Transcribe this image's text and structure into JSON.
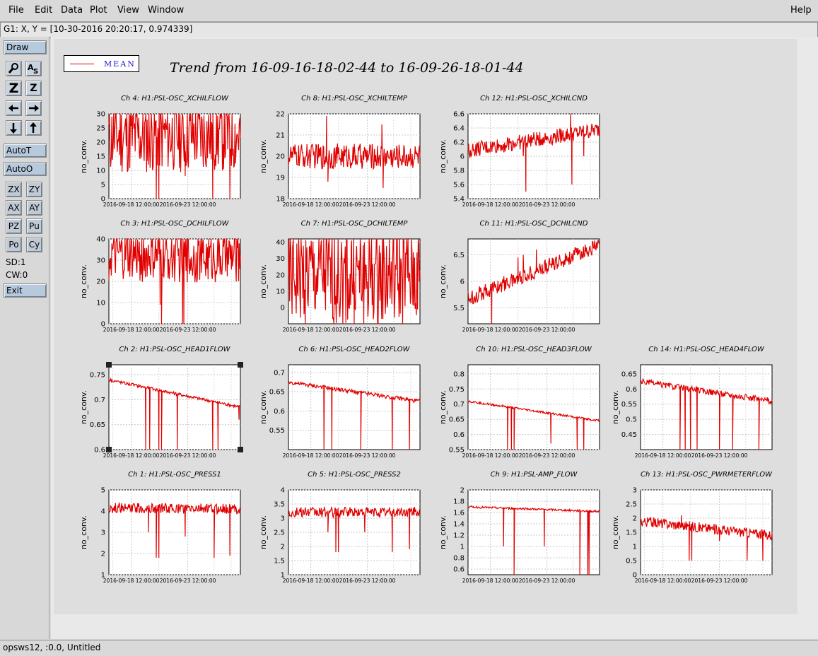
{
  "menu": {
    "items": [
      {
        "name": "menu-file",
        "label": "File"
      },
      {
        "name": "menu-edit",
        "label": "Edit"
      },
      {
        "name": "menu-data",
        "label": "Data"
      },
      {
        "name": "menu-plot",
        "label": "Plot"
      },
      {
        "name": "menu-view",
        "label": "View"
      },
      {
        "name": "menu-window",
        "label": "Window"
      }
    ],
    "help": "Help"
  },
  "coord_readout": "G1: X, Y = [10-30-2016 20:20:17, 0.974339]",
  "toolbar": {
    "draw": "Draw",
    "autot": "AutoT",
    "autoo": "AutoO",
    "zx": "ZX",
    "zy": "ZY",
    "ax": "AX",
    "ay": "AY",
    "pz": "PZ",
    "pu": "Pu",
    "po": "Po",
    "cy": "Cy",
    "sd": "SD:1",
    "cw": "CW:0",
    "exit": "Exit",
    "icons": [
      "magnifier-icon",
      "text-size-icon",
      "zoom-in-icon",
      "zoom-out-icon",
      "arrow-left-icon",
      "arrow-right-icon",
      "arrow-down-icon",
      "arrow-up-icon"
    ]
  },
  "legend": {
    "label": "MEAN",
    "color": "#e00000"
  },
  "trend_title": "Trend from 16-09-16-18-02-44 to 16-09-26-18-01-44",
  "status": "opsws12, :0.0, Untitled",
  "chart_data": [
    {
      "type": "line",
      "title": "Ch 4: H1:PSL-OSC_XCHILFLOW",
      "ylabel": "no_conv.",
      "yticks": [
        "0",
        "5",
        "10",
        "15",
        "20",
        "25",
        "30"
      ],
      "ylim": [
        0,
        30
      ],
      "xticks": [
        "2016-09-18 12:00:00",
        "2016-09-23 12:00:00"
      ],
      "grid": true,
      "series": [
        {
          "name": "MEAN",
          "baseline": 22,
          "dips": [
            [
              0.3,
              12
            ],
            [
              0.36,
              0
            ],
            [
              0.38,
              0
            ],
            [
              0.58,
              8
            ],
            [
              0.79,
              0
            ],
            [
              0.92,
              0
            ]
          ],
          "steps": [
            [
              0.3,
              22.6
            ]
          ],
          "noise": 0.15
        }
      ]
    },
    {
      "type": "line",
      "title": "Ch 8: H1:PSL-OSC_XCHILTEMP",
      "ylabel": "no_conv.",
      "yticks": [
        "18",
        "19",
        "20",
        "21",
        "22"
      ],
      "ylim": [
        18,
        22
      ],
      "xticks": [
        "2016-09-18 12:00:00",
        "2016-09-23 12:00:00"
      ],
      "grid": true,
      "series": [
        {
          "name": "MEAN",
          "baseline": 20,
          "dips": [
            [
              0.27,
              19.5
            ],
            [
              0.29,
              21.9
            ],
            [
              0.3,
              18.8
            ],
            [
              0.47,
              19.6
            ],
            [
              0.71,
              21.5
            ],
            [
              0.72,
              18.5
            ],
            [
              0.81,
              19.8
            ]
          ],
          "steps": [],
          "noise": 0.05
        }
      ]
    },
    {
      "type": "line",
      "title": "Ch 12: H1:PSL-OSC_XCHILCND",
      "ylabel": "no_conv.",
      "yticks": [
        "5.4",
        "5.6",
        "5.8",
        "6",
        "6.2",
        "6.4",
        "6.6"
      ],
      "ylim": [
        5.4,
        6.6
      ],
      "xticks": [
        "2016-09-18 12:00:00",
        "2016-09-23 12:00:00"
      ],
      "grid": true,
      "series": [
        {
          "name": "MEAN",
          "baseline": 6.08,
          "trend_end": 6.38,
          "dips": [
            [
              0.42,
              6.0
            ],
            [
              0.44,
              5.5
            ],
            [
              0.48,
              6.3
            ],
            [
              0.79,
              5.6
            ],
            [
              0.78,
              6.6
            ],
            [
              0.88,
              6.0
            ]
          ],
          "steps": [],
          "noise": 0.03
        }
      ]
    },
    {
      "type": "line",
      "title": "Ch 3: H1:PSL-OSC_DCHILFLOW",
      "ylabel": "no_conv.",
      "yticks": [
        "0",
        "10",
        "20",
        "30",
        "40"
      ],
      "ylim": [
        0,
        40
      ],
      "xticks": [
        "2016-09-18 12:00:00",
        "2016-09-23 12:00:00"
      ],
      "grid": true,
      "series": [
        {
          "name": "MEAN",
          "baseline": 31.5,
          "dips": [
            [
              0.39,
              9
            ],
            [
              0.4,
              0
            ],
            [
              0.56,
              0
            ],
            [
              0.57,
              0
            ]
          ],
          "steps": [],
          "noise": 0.1
        }
      ]
    },
    {
      "type": "line",
      "title": "Ch 7: H1:PSL-OSC_DCHILTEMP",
      "ylabel": "no_conv.",
      "yticks": [
        "0",
        "10",
        "20",
        "30",
        "40"
      ],
      "ylim": [
        -10,
        42
      ],
      "xticks": [
        "2016-09-18 12:00:00",
        "2016-09-23 12:00:00"
      ],
      "grid": true,
      "series": [
        {
          "name": "MEAN",
          "baseline": 19.5,
          "dips": [
            [
              0.3,
              13
            ],
            [
              0.48,
              41
            ],
            [
              0.5,
              16
            ]
          ],
          "steps": [
            [
              0.3,
              18.2
            ],
            [
              0.5,
              19.3
            ]
          ],
          "noise": 0.2
        }
      ]
    },
    {
      "type": "line",
      "title": "Ch 11: H1:PSL-OSC_DCHILCND",
      "ylabel": "no_conv.",
      "yticks": [
        "5.5",
        "6",
        "6.5"
      ],
      "ylim": [
        5.2,
        6.8
      ],
      "xticks": [
        "2016-09-18 12:00:00",
        "2016-09-23 12:00:00"
      ],
      "grid": true,
      "series": [
        {
          "name": "MEAN",
          "baseline": 5.68,
          "trend_end": 6.68,
          "dips": [
            [
              0.18,
              5.2
            ],
            [
              0.38,
              6.45
            ],
            [
              0.42,
              6.5
            ],
            [
              0.52,
              6.6
            ]
          ],
          "steps": [],
          "noise": 0.03
        }
      ]
    },
    {
      "type": "line",
      "title": "Ch 2: H1:PSL-OSC_HEAD1FLOW",
      "ylabel": "no_conv.",
      "yticks": [
        "0.6",
        "0.65",
        "0.7",
        "0.75"
      ],
      "ylim": [
        0.6,
        0.77
      ],
      "xticks": [
        "2016-09-18 12:00:00",
        "2016-09-23 12:00:00"
      ],
      "grid": true,
      "series": [
        {
          "name": "MEAN",
          "baseline": 0.74,
          "trend_end": 0.685,
          "dips": [
            [
              0.28,
              0.6
            ],
            [
              0.31,
              0.6
            ],
            [
              0.38,
              0.6
            ],
            [
              0.4,
              0.6
            ],
            [
              0.52,
              0.6
            ],
            [
              0.79,
              0.6
            ],
            [
              0.83,
              0.6
            ],
            [
              0.99,
              0.66
            ]
          ],
          "steps": [
            [
              0.3,
              0.7
            ]
          ],
          "noise": 0.006
        }
      ]
    },
    {
      "type": "line",
      "title": "Ch 6: H1:PSL-OSC_HEAD2FLOW",
      "ylabel": "no_conv.",
      "yticks": [
        "0.55",
        "0.6",
        "0.65",
        "0.7"
      ],
      "ylim": [
        0.5,
        0.72
      ],
      "xticks": [
        "2016-09-18 12:00:00",
        "2016-09-23 12:00:00"
      ],
      "grid": true,
      "series": [
        {
          "name": "MEAN",
          "baseline": 0.675,
          "trend_end": 0.625,
          "dips": [
            [
              0.27,
              0.5
            ],
            [
              0.33,
              0.5
            ],
            [
              0.55,
              0.5
            ],
            [
              0.79,
              0.5
            ],
            [
              0.92,
              0.5
            ]
          ],
          "steps": [
            [
              0.3,
              0.64
            ]
          ],
          "noise": 0.008
        }
      ]
    },
    {
      "type": "line",
      "title": "Ch 10: H1:PSL-OSC_HEAD3FLOW",
      "ylabel": "no_conv.",
      "yticks": [
        "0.55",
        "0.6",
        "0.65",
        "0.7",
        "0.75",
        "0.8"
      ],
      "ylim": [
        0.55,
        0.83
      ],
      "xticks": [
        "2016-09-18 12:00:00",
        "2016-09-23 12:00:00"
      ],
      "grid": true,
      "series": [
        {
          "name": "MEAN",
          "baseline": 0.71,
          "trend_end": 0.645,
          "dips": [
            [
              0.3,
              0.55
            ],
            [
              0.33,
              0.55
            ],
            [
              0.35,
              0.55
            ],
            [
              0.63,
              0.57
            ],
            [
              0.83,
              0.55
            ],
            [
              0.88,
              0.55
            ]
          ],
          "steps": [
            [
              0.3,
              0.665
            ]
          ],
          "noise": 0.004
        }
      ]
    },
    {
      "type": "line",
      "title": "Ch 14: H1:PSL-OSC_HEAD4FLOW",
      "ylabel": "no_conv.",
      "yticks": [
        "0.45",
        "0.5",
        "0.55",
        "0.6",
        "0.65"
      ],
      "ylim": [
        0.4,
        0.68
      ],
      "xticks": [
        "2016-09-18 12:00:00",
        "2016-09-23 12:00:00"
      ],
      "grid": true,
      "series": [
        {
          "name": "MEAN",
          "baseline": 0.625,
          "trend_end": 0.56,
          "dips": [
            [
              0.3,
              0.4
            ],
            [
              0.34,
              0.4
            ],
            [
              0.38,
              0.4
            ],
            [
              0.43,
              0.4
            ],
            [
              0.6,
              0.4
            ],
            [
              0.7,
              0.4
            ],
            [
              0.9,
              0.4
            ]
          ],
          "steps": [
            [
              0.3,
              0.57
            ]
          ],
          "noise": 0.012
        }
      ]
    },
    {
      "type": "line",
      "title": "Ch 1: H1:PSL-OSC_PRESS1",
      "ylabel": "no_conv.",
      "yticks": [
        "1",
        "2",
        "3",
        "4",
        "5"
      ],
      "ylim": [
        1,
        5
      ],
      "xticks": [
        "2016-09-18 12:00:00",
        "2016-09-23 12:00:00"
      ],
      "grid": true,
      "series": [
        {
          "name": "MEAN",
          "baseline": 4.15,
          "trend_end": 4.1,
          "dips": [
            [
              0.3,
              3.0
            ],
            [
              0.36,
              1.8
            ],
            [
              0.38,
              1.8
            ],
            [
              0.58,
              2.8
            ],
            [
              0.8,
              1.8
            ],
            [
              0.92,
              1.9
            ]
          ],
          "steps": [],
          "noise": 0.02
        }
      ]
    },
    {
      "type": "line",
      "title": "Ch 5: H1:PSL-OSC_PRESS2",
      "ylabel": "no_conv.",
      "yticks": [
        "1",
        "1.5",
        "2",
        "2.5",
        "3",
        "3.5",
        "4"
      ],
      "ylim": [
        1,
        4
      ],
      "xticks": [
        "2016-09-18 12:00:00",
        "2016-09-23 12:00:00"
      ],
      "grid": true,
      "series": [
        {
          "name": "MEAN",
          "baseline": 3.2,
          "trend_end": 3.22,
          "dips": [
            [
              0.3,
              2.5
            ],
            [
              0.36,
              1.8
            ],
            [
              0.38,
              1.8
            ],
            [
              0.58,
              2.5
            ],
            [
              0.79,
              1.8
            ],
            [
              0.92,
              1.9
            ]
          ],
          "steps": [],
          "noise": 0.02
        }
      ]
    },
    {
      "type": "line",
      "title": "Ch 9: H1:PSL-AMP_FLOW",
      "ylabel": "no_conv.",
      "yticks": [
        "0.6",
        "0.8",
        "1",
        "1.2",
        "1.4",
        "1.6",
        "1.8",
        "2"
      ],
      "ylim": [
        0.5,
        2
      ],
      "xticks": [
        "2016-09-18 12:00:00",
        "2016-09-23 12:00:00"
      ],
      "grid": true,
      "series": [
        {
          "name": "MEAN",
          "baseline": 1.7,
          "trend_end": 1.62,
          "dips": [
            [
              0.27,
              1.0
            ],
            [
              0.35,
              0.5
            ],
            [
              0.58,
              1.0
            ],
            [
              0.85,
              0.5
            ],
            [
              0.91,
              0.5
            ],
            [
              0.92,
              0.5
            ]
          ],
          "steps": [
            [
              0.3,
              1.63
            ]
          ],
          "noise": 0.004
        }
      ]
    },
    {
      "type": "line",
      "title": "Ch 13: H1:PSL-OSC_PWRMETERFLOW",
      "ylabel": "no_conv.",
      "yticks": [
        "0",
        "0.5",
        "1",
        "1.5",
        "2",
        "2.5",
        "3"
      ],
      "ylim": [
        0,
        3
      ],
      "xticks": [
        "2016-09-18 12:00:00",
        "2016-09-23 12:00:00"
      ],
      "grid": true,
      "series": [
        {
          "name": "MEAN",
          "baseline": 1.9,
          "trend_end": 1.4,
          "dips": [
            [
              0.31,
              2.1
            ],
            [
              0.37,
              0.5
            ],
            [
              0.39,
              0.5
            ],
            [
              0.6,
              1.2
            ],
            [
              0.81,
              0.5
            ],
            [
              0.93,
              0.5
            ]
          ],
          "steps": [
            [
              0.3,
              1.4
            ]
          ],
          "noise": 0.02
        }
      ]
    }
  ]
}
